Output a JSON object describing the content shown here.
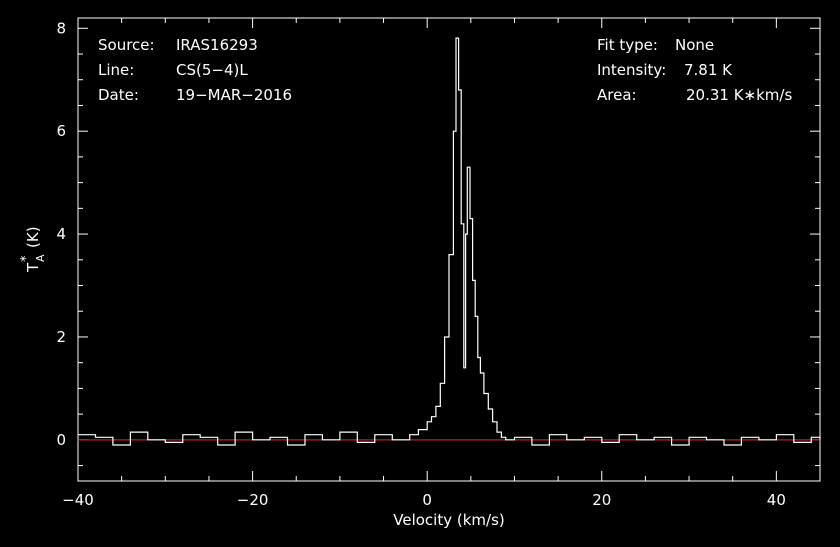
{
  "info_left": {
    "source_label": "Source:",
    "source_value": "IRAS16293",
    "line_label": "Line:",
    "line_value": "CS(5−4)L",
    "date_label": "Date:",
    "date_value": "19−MAR−2016"
  },
  "info_right": {
    "fit_label": "Fit type:",
    "fit_value": "None",
    "intensity_label": "Intensity:",
    "intensity_value": "7.81 K",
    "area_label": "Area:",
    "area_value": "20.31 K∗km/s"
  },
  "chart_data": {
    "type": "line",
    "title": "",
    "xlabel": "Velocity (km/s)",
    "ylabel_main": "T",
    "ylabel_sup": "*",
    "ylabel_sub": "A",
    "ylabel_unit": "(K)",
    "xlim": [
      -40,
      45
    ],
    "ylim": [
      -0.8,
      8.2
    ],
    "x_ticks": [
      -40,
      -20,
      0,
      20,
      40
    ],
    "x_tick_labels": [
      "−40",
      "−20",
      "0",
      "20",
      "40"
    ],
    "y_ticks": [
      0,
      2,
      4,
      6,
      8
    ],
    "y_tick_labels": [
      "0",
      "2",
      "4",
      "6",
      "8"
    ],
    "baseline": 0,
    "baseline_color": "#b22222",
    "line_color": "#ffffff",
    "series": [
      {
        "style": "step",
        "x": [
          -40,
          -38,
          -36,
          -34,
          -32,
          -30,
          -28,
          -26,
          -24,
          -22,
          -20,
          -18,
          -16,
          -14,
          -12,
          -10,
          -8,
          -6,
          -4,
          -2,
          -1,
          0,
          0.5,
          1,
          1.5,
          2,
          2.5,
          3,
          3.3,
          3.6,
          3.9,
          4.2,
          4.4,
          4.6,
          4.9,
          5.2,
          5.5,
          5.8,
          6.1,
          6.5,
          7,
          7.5,
          8,
          8.5,
          9,
          10,
          12,
          14,
          16,
          18,
          20,
          22,
          24,
          26,
          28,
          30,
          32,
          34,
          36,
          38,
          40,
          42,
          44,
          45
        ],
        "y": [
          0.1,
          0.05,
          -0.1,
          0.15,
          0.0,
          -0.05,
          0.1,
          0.05,
          -0.1,
          0.15,
          0.0,
          0.05,
          -0.1,
          0.1,
          0.0,
          0.15,
          -0.05,
          0.1,
          0.0,
          0.1,
          0.2,
          0.35,
          0.45,
          0.65,
          1.1,
          2.0,
          3.6,
          6.0,
          7.81,
          6.8,
          4.2,
          1.4,
          4.0,
          5.3,
          4.3,
          3.1,
          2.4,
          1.6,
          1.3,
          0.9,
          0.6,
          0.35,
          0.15,
          0.05,
          0.0,
          0.05,
          -0.1,
          0.1,
          0.0,
          0.05,
          -0.05,
          0.1,
          0.0,
          0.05,
          -0.1,
          0.05,
          0.0,
          -0.1,
          0.05,
          0.0,
          0.1,
          -0.05,
          0.05,
          0.0
        ]
      }
    ],
    "legend": "none",
    "grid": false
  }
}
